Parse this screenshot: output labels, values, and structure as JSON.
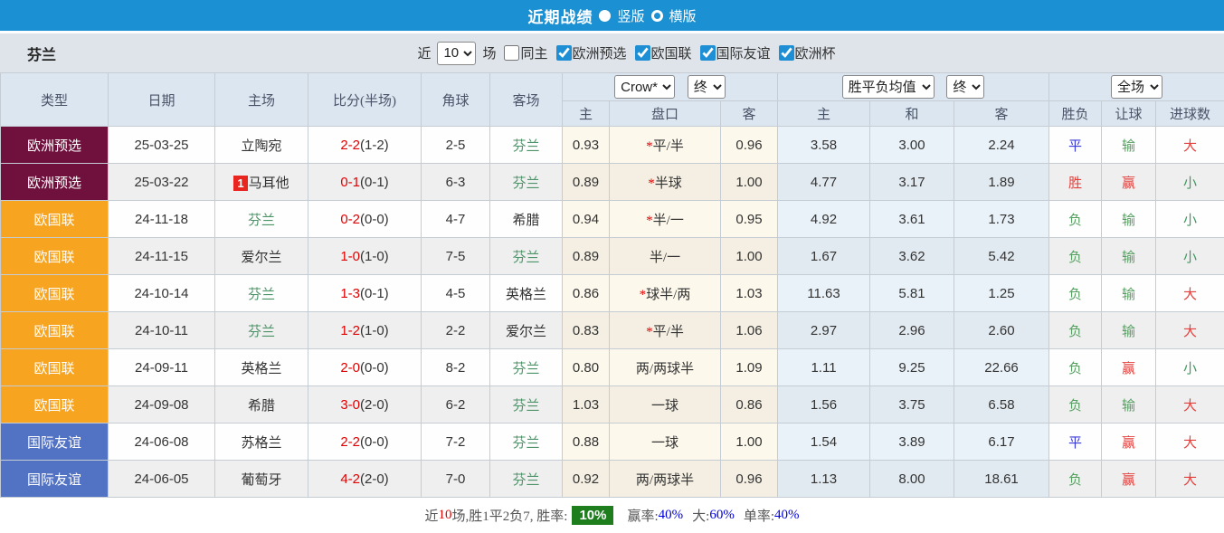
{
  "title_bar": {
    "title": "近期战绩",
    "radio_vertical": "竖版",
    "radio_horizontal": "横版"
  },
  "filter": {
    "team": "芬兰",
    "recent_label": "近",
    "recent_value": "10",
    "games_label": "场",
    "items": [
      {
        "label": "同主",
        "checked": false
      },
      {
        "label": "欧洲预选",
        "checked": true
      },
      {
        "label": "欧国联",
        "checked": true
      },
      {
        "label": "国际友谊",
        "checked": true
      },
      {
        "label": "欧洲杯",
        "checked": true
      }
    ]
  },
  "colors": {
    "topbar": "#1b90d2",
    "header_bg": "#dce6f1",
    "team_highlight": "#4d9368",
    "score": "#e20000",
    "rank_badge": "#e8261f",
    "win_rate_badge": "#1e7e1e",
    "summary_blue": "#0000d8"
  },
  "type_colors": {
    "欧洲预选": "#70103d",
    "欧国联": "#f7a420",
    "国际友谊": "#5272c4"
  },
  "result_colors": {
    "win": "#e5403c",
    "draw": "#3a3ad6",
    "loss": "#55a060",
    "big": "#e5403c",
    "small": "#3d9a5f"
  },
  "table": {
    "headers": {
      "type": "类型",
      "date": "日期",
      "home": "主场",
      "score": "比分(半场)",
      "corners": "角球",
      "away": "客场",
      "sub": [
        "主",
        "盘口",
        "客",
        "主",
        "和",
        "客",
        "胜负",
        "让球",
        "进球数"
      ]
    },
    "selects": {
      "company": "Crow*",
      "stage1": "终",
      "avg": "胜平负均值",
      "stage2": "终",
      "scope": "全场"
    },
    "rows": [
      {
        "type": "欧洲预选",
        "date": "25-03-25",
        "home": "立陶宛",
        "home_self": false,
        "home_rank": null,
        "score": "2-2",
        "half": "(1-2)",
        "corners": "2-5",
        "away": "芬兰",
        "away_self": true,
        "odds_home": "0.93",
        "star": true,
        "handicap": "平/半",
        "odds_away": "0.96",
        "avg_home": "3.58",
        "avg_draw": "3.00",
        "avg_away": "2.24",
        "result": "平",
        "result_key": "draw",
        "handicap_result": "输",
        "handicap_key": "loss",
        "goals": "大",
        "goals_key": "big"
      },
      {
        "type": "欧洲预选",
        "date": "25-03-22",
        "home": "马耳他",
        "home_self": false,
        "home_rank": "1",
        "score": "0-1",
        "half": "(0-1)",
        "corners": "6-3",
        "away": "芬兰",
        "away_self": true,
        "odds_home": "0.89",
        "star": true,
        "handicap": "半球",
        "odds_away": "1.00",
        "avg_home": "4.77",
        "avg_draw": "3.17",
        "avg_away": "1.89",
        "result": "胜",
        "result_key": "win",
        "handicap_result": "赢",
        "handicap_key": "win",
        "goals": "小",
        "goals_key": "small"
      },
      {
        "type": "欧国联",
        "date": "24-11-18",
        "home": "芬兰",
        "home_self": true,
        "home_rank": null,
        "score": "0-2",
        "half": "(0-0)",
        "corners": "4-7",
        "away": "希腊",
        "away_self": false,
        "odds_home": "0.94",
        "star": true,
        "handicap": "半/一",
        "odds_away": "0.95",
        "avg_home": "4.92",
        "avg_draw": "3.61",
        "avg_away": "1.73",
        "result": "负",
        "result_key": "loss",
        "handicap_result": "输",
        "handicap_key": "loss",
        "goals": "小",
        "goals_key": "small"
      },
      {
        "type": "欧国联",
        "date": "24-11-15",
        "home": "爱尔兰",
        "home_self": false,
        "home_rank": null,
        "score": "1-0",
        "half": "(1-0)",
        "corners": "7-5",
        "away": "芬兰",
        "away_self": true,
        "odds_home": "0.89",
        "star": false,
        "handicap": "半/一",
        "odds_away": "1.00",
        "avg_home": "1.67",
        "avg_draw": "3.62",
        "avg_away": "5.42",
        "result": "负",
        "result_key": "loss",
        "handicap_result": "输",
        "handicap_key": "loss",
        "goals": "小",
        "goals_key": "small"
      },
      {
        "type": "欧国联",
        "date": "24-10-14",
        "home": "芬兰",
        "home_self": true,
        "home_rank": null,
        "score": "1-3",
        "half": "(0-1)",
        "corners": "4-5",
        "away": "英格兰",
        "away_self": false,
        "odds_home": "0.86",
        "star": true,
        "handicap": "球半/两",
        "odds_away": "1.03",
        "avg_home": "11.63",
        "avg_draw": "5.81",
        "avg_away": "1.25",
        "result": "负",
        "result_key": "loss",
        "handicap_result": "输",
        "handicap_key": "loss",
        "goals": "大",
        "goals_key": "big"
      },
      {
        "type": "欧国联",
        "date": "24-10-11",
        "home": "芬兰",
        "home_self": true,
        "home_rank": null,
        "score": "1-2",
        "half": "(1-0)",
        "corners": "2-2",
        "away": "爱尔兰",
        "away_self": false,
        "odds_home": "0.83",
        "star": true,
        "handicap": "平/半",
        "odds_away": "1.06",
        "avg_home": "2.97",
        "avg_draw": "2.96",
        "avg_away": "2.60",
        "result": "负",
        "result_key": "loss",
        "handicap_result": "输",
        "handicap_key": "loss",
        "goals": "大",
        "goals_key": "big"
      },
      {
        "type": "欧国联",
        "date": "24-09-11",
        "home": "英格兰",
        "home_self": false,
        "home_rank": null,
        "score": "2-0",
        "half": "(0-0)",
        "corners": "8-2",
        "away": "芬兰",
        "away_self": true,
        "odds_home": "0.80",
        "star": false,
        "handicap": "两/两球半",
        "odds_away": "1.09",
        "avg_home": "1.11",
        "avg_draw": "9.25",
        "avg_away": "22.66",
        "result": "负",
        "result_key": "loss",
        "handicap_result": "赢",
        "handicap_key": "win",
        "goals": "小",
        "goals_key": "small"
      },
      {
        "type": "欧国联",
        "date": "24-09-08",
        "home": "希腊",
        "home_self": false,
        "home_rank": null,
        "score": "3-0",
        "half": "(2-0)",
        "corners": "6-2",
        "away": "芬兰",
        "away_self": true,
        "odds_home": "1.03",
        "star": false,
        "handicap": "一球",
        "odds_away": "0.86",
        "avg_home": "1.56",
        "avg_draw": "3.75",
        "avg_away": "6.58",
        "result": "负",
        "result_key": "loss",
        "handicap_result": "输",
        "handicap_key": "loss",
        "goals": "大",
        "goals_key": "big"
      },
      {
        "type": "国际友谊",
        "date": "24-06-08",
        "home": "苏格兰",
        "home_self": false,
        "home_rank": null,
        "score": "2-2",
        "half": "(0-0)",
        "corners": "7-2",
        "away": "芬兰",
        "away_self": true,
        "odds_home": "0.88",
        "star": false,
        "handicap": "一球",
        "odds_away": "1.00",
        "avg_home": "1.54",
        "avg_draw": "3.89",
        "avg_away": "6.17",
        "result": "平",
        "result_key": "draw",
        "handicap_result": "赢",
        "handicap_key": "win",
        "goals": "大",
        "goals_key": "big"
      },
      {
        "type": "国际友谊",
        "date": "24-06-05",
        "home": "葡萄牙",
        "home_self": false,
        "home_rank": null,
        "score": "4-2",
        "half": "(2-0)",
        "corners": "7-0",
        "away": "芬兰",
        "away_self": true,
        "odds_home": "0.92",
        "star": false,
        "handicap": "两/两球半",
        "odds_away": "0.96",
        "avg_home": "1.13",
        "avg_draw": "8.00",
        "avg_away": "18.61",
        "result": "负",
        "result_key": "loss",
        "handicap_result": "赢",
        "handicap_key": "win",
        "goals": "大",
        "goals_key": "big"
      }
    ]
  },
  "summary": {
    "prefix": "近",
    "count": "10",
    "mid": "场,胜1平2负7, 胜率:",
    "win_rate": "10%",
    "pairs": [
      {
        "label": "赢率:",
        "value": "40%"
      },
      {
        "label": "大:",
        "value": "60%"
      },
      {
        "label": "单率:",
        "value": "40%"
      }
    ]
  }
}
